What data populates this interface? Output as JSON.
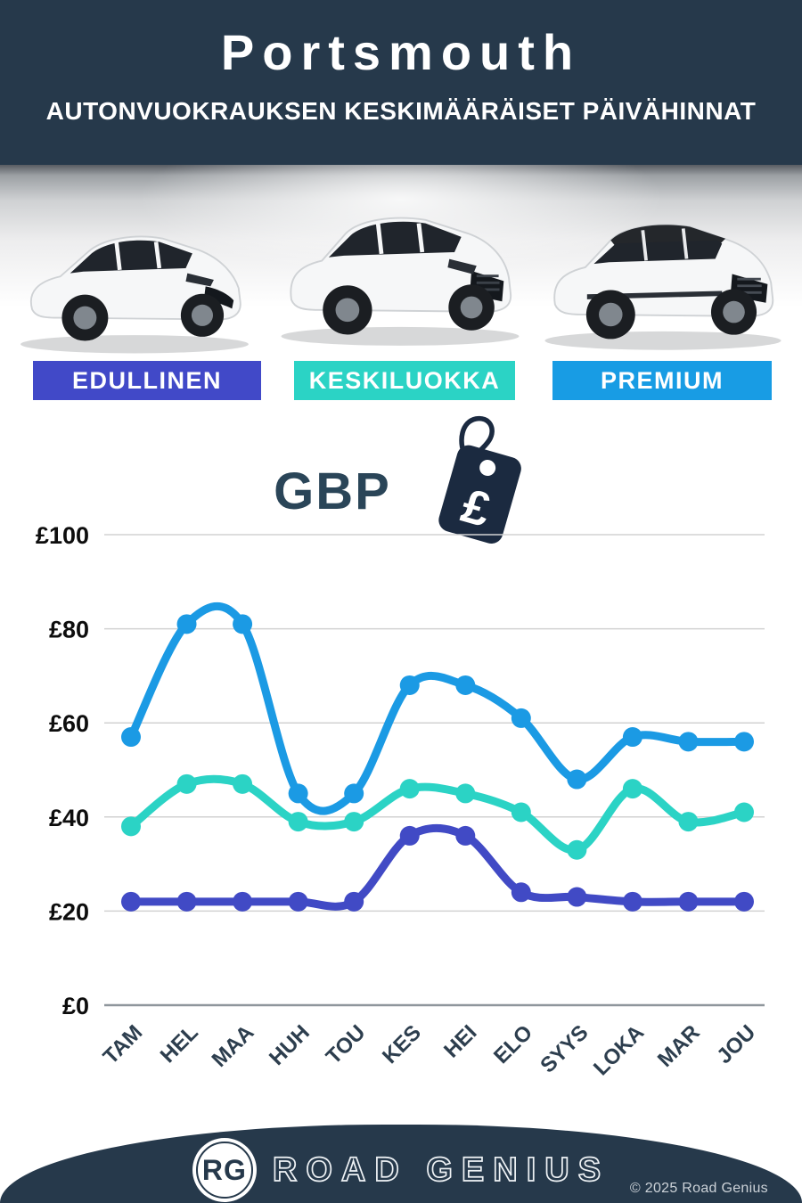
{
  "header": {
    "title": "Portsmouth",
    "subtitle": "AUTONVUOKRAUKSEN KESKIMÄÄRÄISET PÄIVÄHINNAT"
  },
  "tiers": {
    "budget": {
      "label": "EDULLINEN",
      "color": "#4149C8"
    },
    "mid": {
      "label": "KESKILUOKKA",
      "color": "#2BD3C5"
    },
    "premium": {
      "label": "PREMIUM",
      "color": "#189CE4"
    }
  },
  "icons": {
    "budget_car": "hatchback-car",
    "mid_car": "suv-car",
    "premium_car": "luxury-suv-black-roof-car",
    "price_tag": "pound-price-tag"
  },
  "currency": {
    "label": "GBP",
    "symbol": "£"
  },
  "colors": {
    "header_bg": "#26394B",
    "footer_bg": "#26394B",
    "tag": "#1B2A40",
    "gbp_text": "#2A4558",
    "gridline": "#d2d2d2",
    "axis_line": "#8f969c"
  },
  "chart_data": {
    "type": "line",
    "categories": [
      "TAM",
      "HEL",
      "MAA",
      "HUH",
      "TOU",
      "KES",
      "HEI",
      "ELO",
      "SYYS",
      "LOKA",
      "MAR",
      "JOU"
    ],
    "series": [
      {
        "name": "PREMIUM",
        "color": "#1B9AE4",
        "values": [
          57,
          81,
          81,
          45,
          45,
          68,
          68,
          61,
          48,
          57,
          56,
          56
        ]
      },
      {
        "name": "KESKILUOKKA",
        "color": "#2BD3C5",
        "values": [
          38,
          47,
          47,
          39,
          39,
          46,
          45,
          41,
          33,
          46,
          39,
          41
        ]
      },
      {
        "name": "EDULLINEN",
        "color": "#414AC5",
        "values": [
          22,
          22,
          22,
          22,
          22,
          36,
          36,
          24,
          23,
          22,
          22,
          22
        ]
      }
    ],
    "title": "Autonvuokrauksen keskimääräiset päivähinnat (GBP)",
    "xlabel": "",
    "ylabel": "GBP £",
    "ylim": [
      0,
      100
    ],
    "ytick_step": 20,
    "currency_prefix": "£",
    "grid": true,
    "legend": "none"
  },
  "footer": {
    "logo_initials": "RG",
    "brand": "ROAD GENIUS",
    "copyright": "© 2025 Road Genius"
  }
}
